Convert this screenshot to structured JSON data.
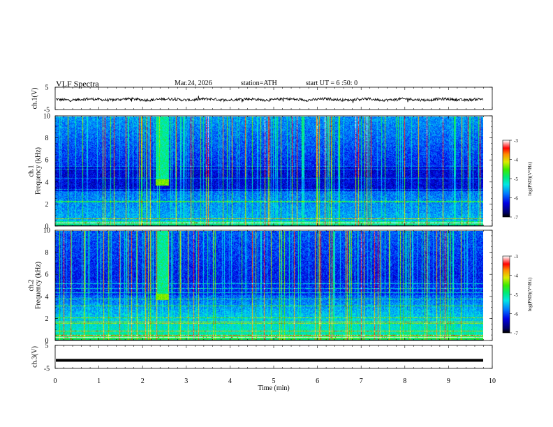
{
  "header": {
    "title": "VLF  Spectra",
    "date": "Mar.24, 2026",
    "station": "station=ATH",
    "start": "start  UT  =   6  :50: 0"
  },
  "chart_data": [
    {
      "type": "line",
      "name": "ch1-waveform",
      "ylabel": "ch.1(V)",
      "ylim": [
        -5,
        5
      ],
      "yticks": [
        "5",
        "-5"
      ],
      "xlim": [
        0,
        10
      ],
      "description_values": "broadband waveform, roughly -1 to 0 V around a slightly negative baseline"
    },
    {
      "type": "heatmap",
      "name": "ch1-spectrogram",
      "ylabel": "ch.1\nFrequency  (kHz)",
      "ylim": [
        0,
        10
      ],
      "yticks": [
        "0",
        "2",
        "4",
        "6",
        "8",
        "10"
      ],
      "xlim": [
        0,
        9.83
      ],
      "colorbar": {
        "label": "log(PSD)(V²/Hz)",
        "range": [
          -7,
          -3
        ],
        "ticks": [
          "-3",
          "-4",
          "-5",
          "-6",
          "-7"
        ]
      },
      "features": {
        "bright_patch_min": [
          2.3,
          2.6
        ],
        "bright_patch_khz": [
          3.7,
          4.3
        ]
      }
    },
    {
      "type": "heatmap",
      "name": "ch2-spectrogram",
      "ylabel": "ch.2\nFrequency  (kHz)",
      "ylim": [
        0,
        10
      ],
      "yticks": [
        "0",
        "2",
        "4",
        "6",
        "8",
        "10"
      ],
      "xlim": [
        0,
        9.83
      ],
      "colorbar": {
        "label": "log(PSD)(V²/Hz)",
        "range": [
          -7,
          -3
        ],
        "ticks": [
          "-3",
          "-4",
          "-5",
          "-6",
          "-7"
        ]
      },
      "features": {
        "bright_patch_min": [
          2.3,
          2.6
        ],
        "bright_patch_khz": [
          3.7,
          4.3
        ]
      }
    },
    {
      "type": "line",
      "name": "ch3-waveform",
      "ylabel": "ch.3(V)",
      "ylim": [
        -5,
        5
      ],
      "yticks": [
        "5",
        "-5"
      ],
      "xlim": [
        0,
        10
      ],
      "level": -1.5
    }
  ],
  "xaxis": {
    "label": "Time  (min)",
    "ticks": [
      "0",
      "1",
      "2",
      "3",
      "4",
      "5",
      "6",
      "7",
      "8",
      "9",
      "10"
    ]
  },
  "colors": {
    "spectrum_low": "#000080",
    "spectrum_high": "#ff0000"
  }
}
